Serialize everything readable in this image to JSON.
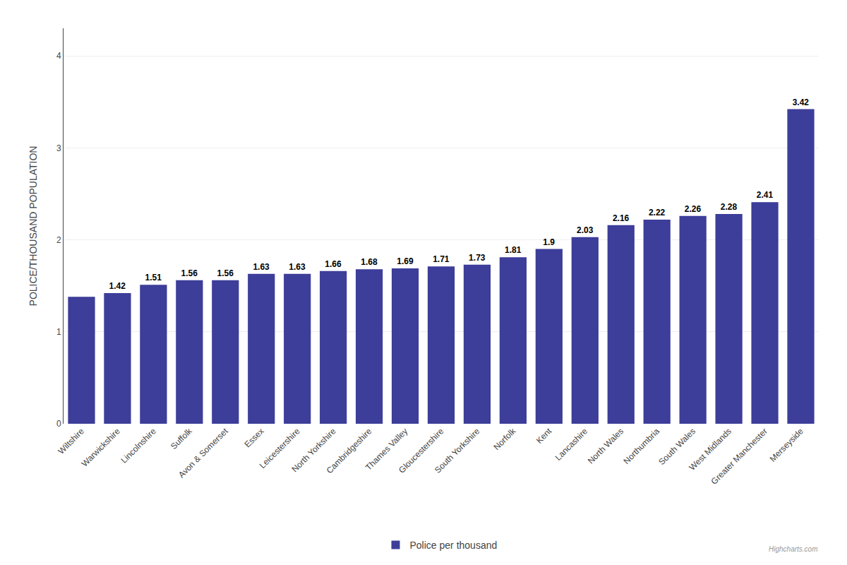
{
  "chart_data": {
    "type": "bar",
    "categories": [
      "Wiltshire",
      "Warwickshire",
      "Lincolnshire",
      "Suffolk",
      "Avon & Somerset",
      "Essex",
      "Leicestershire",
      "North Yorkshire",
      "Cambridgeshire",
      "Thames Valley",
      "Gloucestershire",
      "South Yorkshire",
      "Norfolk",
      "Kent",
      "Lancashire",
      "North Wales",
      "Northumbria",
      "South Wales",
      "West Midlands",
      "Greater Manchester",
      "Merseyside"
    ],
    "series": [
      {
        "name": "Police per thousand",
        "color": "#3d3d9a",
        "values": [
          1.38,
          1.42,
          1.51,
          1.56,
          1.56,
          1.63,
          1.63,
          1.66,
          1.68,
          1.69,
          1.71,
          1.73,
          1.81,
          1.9,
          2.03,
          2.16,
          2.22,
          2.26,
          2.28,
          2.41,
          3.42
        ],
        "value_labels": [
          null,
          "1.42",
          "1.51",
          "1.56",
          "1.56",
          "1.63",
          "1.63",
          "1.66",
          "1.68",
          "1.69",
          "1.71",
          "1.73",
          "1.81",
          "1.9",
          "2.03",
          "2.16",
          "2.22",
          "2.26",
          "2.28",
          "2.41",
          "3.42"
        ]
      }
    ],
    "ylabel": "POLICE/THOUSAND POPULATION",
    "ylim": [
      0,
      4.3
    ],
    "yticks": [
      0,
      1,
      2,
      3,
      4
    ],
    "grid": true,
    "legend": "bottom",
    "data_labels": true,
    "annotations": [
      "Highcharts.com"
    ]
  }
}
